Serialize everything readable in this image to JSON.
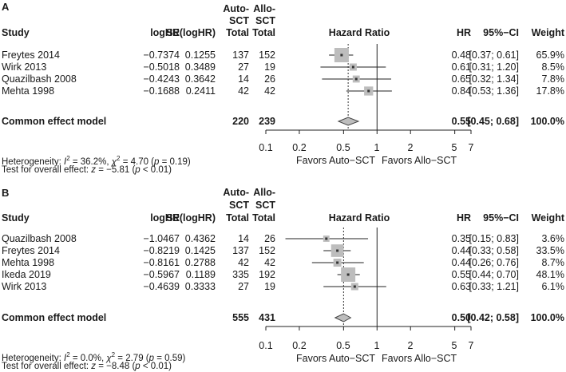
{
  "chart_data": [
    {
      "type": "forest",
      "panel_label": "A",
      "columns": {
        "study": "Study",
        "loghr": "logHR",
        "se": "SE(logHR)",
        "auto_l1": "Auto-",
        "auto_l2": "SCT",
        "auto_l3": "Total",
        "allo_l1": "Allo-",
        "allo_l2": "SCT",
        "allo_l3": "Total",
        "plot": "Hazard Ratio",
        "hr": "HR",
        "ci": "95%−CI",
        "weight": "Weight"
      },
      "studies": [
        {
          "study": "Freytes 2014",
          "loghr": "−0.7374",
          "se": "0.1255",
          "auto_total": "137",
          "allo_total": "152",
          "hr": 0.48,
          "lo": 0.37,
          "hi": 0.61,
          "hr_text": "0.48",
          "ci_text": "[0.37; 0.61]",
          "weight": 65.9,
          "weight_text": "65.9%"
        },
        {
          "study": "Wirk 2013",
          "loghr": "−0.5018",
          "se": "0.3489",
          "auto_total": "27",
          "allo_total": "19",
          "hr": 0.61,
          "lo": 0.31,
          "hi": 1.2,
          "hr_text": "0.61",
          "ci_text": "[0.31; 1.20]",
          "weight": 8.5,
          "weight_text": "8.5%"
        },
        {
          "study": "Quazilbash 2008",
          "loghr": "−0.4243",
          "se": "0.3642",
          "auto_total": "14",
          "allo_total": "26",
          "hr": 0.65,
          "lo": 0.32,
          "hi": 1.34,
          "hr_text": "0.65",
          "ci_text": "[0.32; 1.34]",
          "weight": 7.8,
          "weight_text": "7.8%"
        },
        {
          "study": "Mehta 1998",
          "loghr": "−0.1688",
          "se": "0.2411",
          "auto_total": "42",
          "allo_total": "42",
          "hr": 0.84,
          "lo": 0.53,
          "hi": 1.36,
          "hr_text": "0.84",
          "ci_text": "[0.53; 1.36]",
          "weight": 17.8,
          "weight_text": "17.8%"
        }
      ],
      "common": {
        "label": "Common effect model",
        "auto_total": "220",
        "allo_total": "239",
        "hr": 0.55,
        "lo": 0.45,
        "hi": 0.68,
        "hr_text": "0.55",
        "ci_text": "[0.45; 0.68]",
        "weight_text": "100.0%"
      },
      "x_scale": "log",
      "x_ticks": [
        0.1,
        0.2,
        0.5,
        1,
        2,
        5,
        7
      ],
      "x_tick_labels": [
        "0.1",
        "0.2",
        "0.5",
        "1",
        "2",
        "5",
        "7"
      ],
      "favors_left": "Favors Auto−SCT",
      "favors_right": "Favors Allo−SCT",
      "heterogeneity": {
        "prefix": "Heterogeneity: ",
        "i2_label": "I",
        "i2_value": " = 36.2%, ",
        "chi_label": "χ",
        "chi_value": " = 4.70 (",
        "p_label": "p",
        "p_value": " = 0.19)"
      },
      "overall": {
        "prefix": "Test for overall effect: ",
        "z_label": "z",
        "z_value": " = −5.81 (",
        "p_label": "p",
        "p_value": " < 0.01)"
      }
    },
    {
      "type": "forest",
      "panel_label": "B",
      "columns": {
        "study": "Study",
        "loghr": "logHR",
        "se": "SE(logHR)",
        "auto_l1": "Auto-",
        "auto_l2": "SCT",
        "auto_l3": "Total",
        "allo_l1": "Allo-",
        "allo_l2": "SCT",
        "allo_l3": "Total",
        "plot": "Hazard Ratio",
        "hr": "HR",
        "ci": "95%−CI",
        "weight": "Weight"
      },
      "studies": [
        {
          "study": "Quazilbash 2008",
          "loghr": "−1.0467",
          "se": "0.4362",
          "auto_total": "14",
          "allo_total": "26",
          "hr": 0.35,
          "lo": 0.15,
          "hi": 0.83,
          "hr_text": "0.35",
          "ci_text": "[0.15; 0.83]",
          "weight": 3.6,
          "weight_text": "3.6%"
        },
        {
          "study": "Freytes 2014",
          "loghr": "−0.8219",
          "se": "0.1425",
          "auto_total": "137",
          "allo_total": "152",
          "hr": 0.44,
          "lo": 0.33,
          "hi": 0.58,
          "hr_text": "0.44",
          "ci_text": "[0.33; 0.58]",
          "weight": 33.5,
          "weight_text": "33.5%"
        },
        {
          "study": "Mehta 1998",
          "loghr": "−0.8161",
          "se": "0.2788",
          "auto_total": "42",
          "allo_total": "42",
          "hr": 0.44,
          "lo": 0.26,
          "hi": 0.76,
          "hr_text": "0.44",
          "ci_text": "[0.26; 0.76]",
          "weight": 8.7,
          "weight_text": "8.7%"
        },
        {
          "study": "Ikeda 2019",
          "loghr": "−0.5967",
          "se": "0.1189",
          "auto_total": "335",
          "allo_total": "192",
          "hr": 0.55,
          "lo": 0.44,
          "hi": 0.7,
          "hr_text": "0.55",
          "ci_text": "[0.44; 0.70]",
          "weight": 48.1,
          "weight_text": "48.1%"
        },
        {
          "study": "Wirk 2013",
          "loghr": "−0.4639",
          "se": "0.3333",
          "auto_total": "27",
          "allo_total": "19",
          "hr": 0.63,
          "lo": 0.33,
          "hi": 1.21,
          "hr_text": "0.63",
          "ci_text": "[0.33; 1.21]",
          "weight": 6.1,
          "weight_text": "6.1%"
        }
      ],
      "common": {
        "label": "Common effect model",
        "auto_total": "555",
        "allo_total": "431",
        "hr": 0.5,
        "lo": 0.42,
        "hi": 0.58,
        "hr_text": "0.50",
        "ci_text": "[0.42; 0.58]",
        "weight_text": "100.0%"
      },
      "x_scale": "log",
      "x_ticks": [
        0.1,
        0.2,
        0.5,
        1,
        2,
        5,
        7
      ],
      "x_tick_labels": [
        "0.1",
        "0.2",
        "0.5",
        "1",
        "2",
        "5",
        "7"
      ],
      "favors_left": "Favors Auto−SCT",
      "favors_right": "Favors Allo−SCT",
      "heterogeneity": {
        "prefix": "Heterogeneity: ",
        "i2_label": "I",
        "i2_value": " = 0.0%, ",
        "chi_label": "χ",
        "chi_value": " = 2.79 (",
        "p_label": "p",
        "p_value": " = 0.59)"
      },
      "overall": {
        "prefix": "Test for overall effect: ",
        "z_label": "z",
        "z_value": " = −8.48 (",
        "p_label": "p",
        "p_value": " < 0.01)"
      }
    }
  ]
}
